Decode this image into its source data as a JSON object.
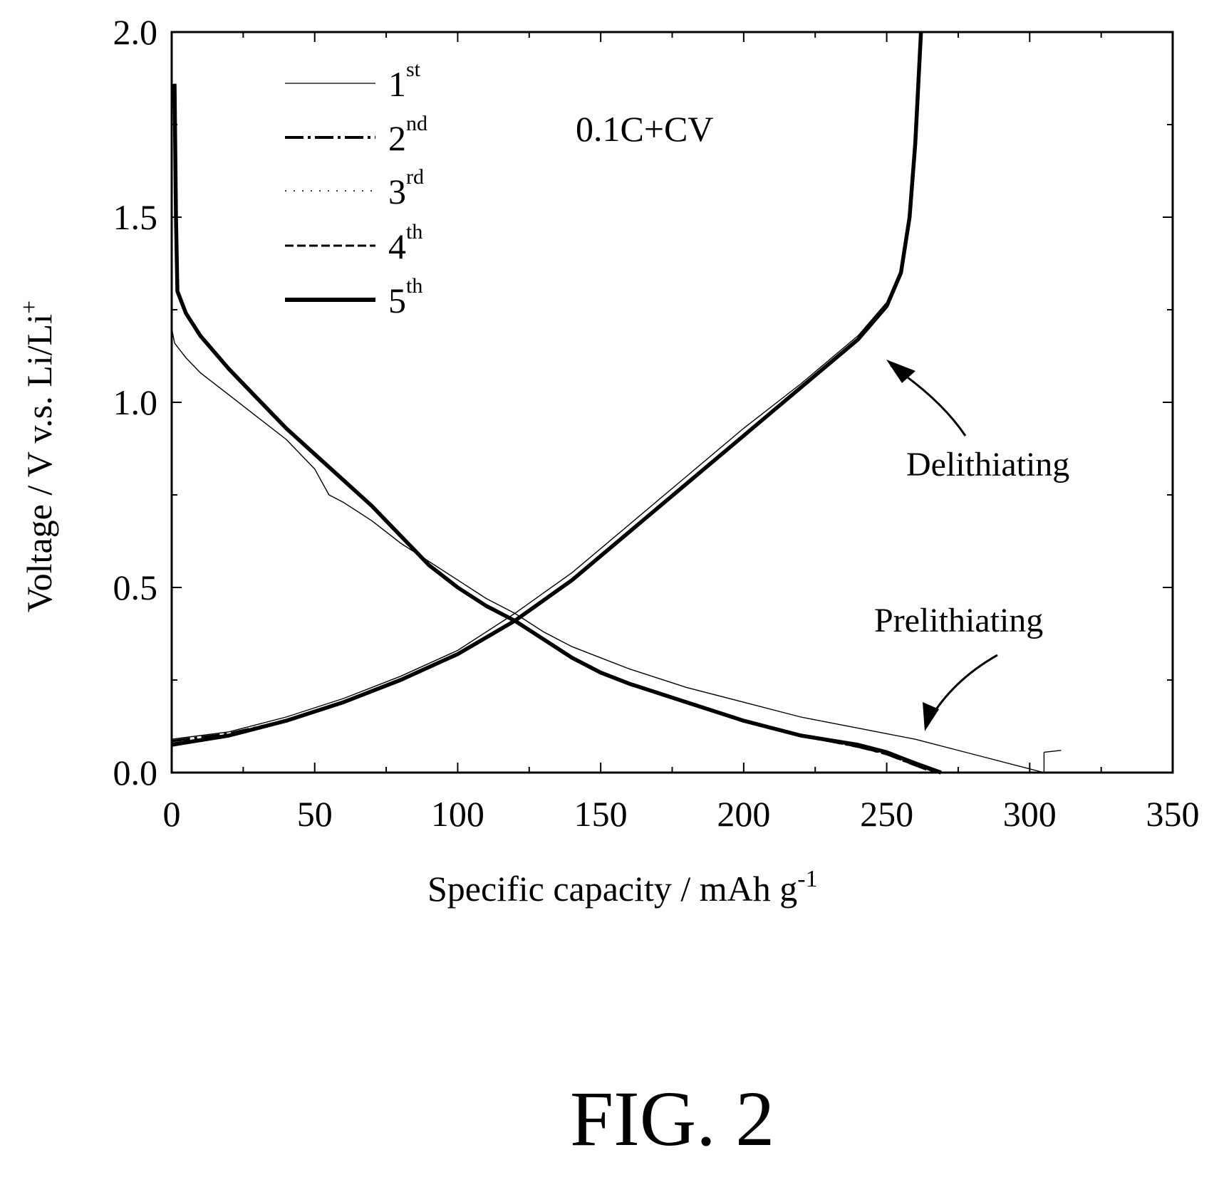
{
  "figure_label": "FIG. 2",
  "chart_data": {
    "type": "line",
    "xlabel": "Specific capacity / mAh g",
    "xlabel_sup": "-1",
    "ylabel": "Voltage / V v.s. Li/Li",
    "ylabel_sup": "+",
    "xlim": [
      0,
      350
    ],
    "ylim": [
      0.0,
      2.0
    ],
    "xticks": [
      0,
      50,
      100,
      150,
      200,
      250,
      300,
      350
    ],
    "xtick_labels": [
      "0",
      "50",
      "100",
      "150",
      "200",
      "250",
      "300",
      "350"
    ],
    "yticks": [
      0.0,
      0.5,
      1.0,
      1.5,
      2.0
    ],
    "ytick_labels": [
      "0.0",
      "0.5",
      "1.0",
      "1.5",
      "2.0"
    ],
    "grid": false,
    "legend_position": "top-left",
    "annotations": {
      "condition": "0.1C+CV",
      "delithiating": "Delithiating",
      "prelithiating": "Prelithiating"
    },
    "series": [
      {
        "name": "1",
        "name_sup": "st",
        "style": "thin",
        "prelithiating": [
          [
            0,
            1.2
          ],
          [
            1,
            1.16
          ],
          [
            5,
            1.12
          ],
          [
            10,
            1.08
          ],
          [
            20,
            1.02
          ],
          [
            30,
            0.96
          ],
          [
            40,
            0.9
          ],
          [
            50,
            0.82
          ],
          [
            55,
            0.75
          ],
          [
            60,
            0.73
          ],
          [
            70,
            0.68
          ],
          [
            80,
            0.62
          ],
          [
            90,
            0.57
          ],
          [
            100,
            0.52
          ],
          [
            110,
            0.47
          ],
          [
            120,
            0.43
          ],
          [
            130,
            0.38
          ],
          [
            140,
            0.34
          ],
          [
            150,
            0.31
          ],
          [
            160,
            0.28
          ],
          [
            180,
            0.23
          ],
          [
            200,
            0.19
          ],
          [
            220,
            0.15
          ],
          [
            240,
            0.12
          ],
          [
            260,
            0.09
          ],
          [
            280,
            0.05
          ],
          [
            300,
            0.01
          ],
          [
            305,
            0.0
          ]
        ],
        "tail": [
          [
            305,
            0.0
          ],
          [
            305,
            0.055
          ],
          [
            311,
            0.06
          ]
        ],
        "delithiating": [
          [
            0,
            0.09
          ],
          [
            20,
            0.11
          ],
          [
            40,
            0.15
          ],
          [
            60,
            0.2
          ],
          [
            80,
            0.26
          ],
          [
            100,
            0.33
          ],
          [
            120,
            0.43
          ],
          [
            140,
            0.54
          ],
          [
            160,
            0.67
          ],
          [
            180,
            0.8
          ],
          [
            200,
            0.93
          ],
          [
            220,
            1.05
          ],
          [
            240,
            1.18
          ],
          [
            250,
            1.27
          ],
          [
            255,
            1.36
          ],
          [
            258,
            1.5
          ],
          [
            260,
            1.7
          ],
          [
            261,
            1.85
          ],
          [
            262,
            2.0
          ]
        ]
      },
      {
        "name": "2",
        "name_sup": "nd",
        "style": "dashdot",
        "prelithiating": [
          [
            1,
            1.86
          ],
          [
            1.5,
            1.5
          ],
          [
            2,
            1.3
          ],
          [
            5,
            1.24
          ],
          [
            10,
            1.18
          ],
          [
            20,
            1.09
          ],
          [
            30,
            1.01
          ],
          [
            40,
            0.93
          ],
          [
            50,
            0.86
          ],
          [
            60,
            0.79
          ],
          [
            70,
            0.72
          ],
          [
            80,
            0.64
          ],
          [
            90,
            0.56
          ],
          [
            100,
            0.5
          ],
          [
            110,
            0.45
          ],
          [
            120,
            0.41
          ],
          [
            130,
            0.36
          ],
          [
            140,
            0.31
          ],
          [
            150,
            0.27
          ],
          [
            160,
            0.24
          ],
          [
            180,
            0.19
          ],
          [
            200,
            0.14
          ],
          [
            220,
            0.1
          ],
          [
            240,
            0.07
          ],
          [
            250,
            0.05
          ],
          [
            260,
            0.02
          ],
          [
            267,
            0.0
          ]
        ],
        "delithiating": [
          [
            0,
            0.085
          ],
          [
            20,
            0.105
          ],
          [
            40,
            0.14
          ],
          [
            60,
            0.19
          ],
          [
            80,
            0.25
          ],
          [
            100,
            0.32
          ],
          [
            120,
            0.41
          ],
          [
            140,
            0.52
          ],
          [
            160,
            0.65
          ],
          [
            180,
            0.78
          ],
          [
            200,
            0.91
          ],
          [
            220,
            1.04
          ],
          [
            240,
            1.17
          ],
          [
            250,
            1.26
          ],
          [
            255,
            1.35
          ],
          [
            258,
            1.5
          ],
          [
            260,
            1.7
          ],
          [
            261,
            1.85
          ],
          [
            262,
            2.0
          ]
        ]
      },
      {
        "name": "3",
        "name_sup": "rd",
        "style": "dotted",
        "prelithiating": [
          [
            1,
            1.86
          ],
          [
            1.5,
            1.5
          ],
          [
            2,
            1.3
          ],
          [
            5,
            1.24
          ],
          [
            10,
            1.18
          ],
          [
            20,
            1.09
          ],
          [
            30,
            1.01
          ],
          [
            40,
            0.93
          ],
          [
            50,
            0.86
          ],
          [
            60,
            0.79
          ],
          [
            70,
            0.72
          ],
          [
            80,
            0.64
          ],
          [
            90,
            0.56
          ],
          [
            100,
            0.5
          ],
          [
            110,
            0.45
          ],
          [
            120,
            0.41
          ],
          [
            130,
            0.36
          ],
          [
            140,
            0.31
          ],
          [
            150,
            0.27
          ],
          [
            160,
            0.24
          ],
          [
            180,
            0.19
          ],
          [
            200,
            0.14
          ],
          [
            220,
            0.1
          ],
          [
            240,
            0.07
          ],
          [
            250,
            0.05
          ],
          [
            260,
            0.02
          ],
          [
            268,
            0.0
          ]
        ],
        "delithiating": [
          [
            0,
            0.08
          ],
          [
            20,
            0.1
          ],
          [
            40,
            0.14
          ],
          [
            60,
            0.19
          ],
          [
            80,
            0.25
          ],
          [
            100,
            0.32
          ],
          [
            120,
            0.41
          ],
          [
            140,
            0.52
          ],
          [
            160,
            0.65
          ],
          [
            180,
            0.78
          ],
          [
            200,
            0.91
          ],
          [
            220,
            1.04
          ],
          [
            240,
            1.17
          ],
          [
            250,
            1.26
          ],
          [
            255,
            1.35
          ],
          [
            258,
            1.5
          ],
          [
            260,
            1.7
          ],
          [
            261,
            1.85
          ],
          [
            262,
            2.0
          ]
        ]
      },
      {
        "name": "4",
        "name_sup": "th",
        "style": "dashed",
        "prelithiating": [
          [
            1,
            1.86
          ],
          [
            1.5,
            1.5
          ],
          [
            2,
            1.3
          ],
          [
            5,
            1.24
          ],
          [
            10,
            1.18
          ],
          [
            20,
            1.09
          ],
          [
            30,
            1.01
          ],
          [
            40,
            0.93
          ],
          [
            50,
            0.86
          ],
          [
            60,
            0.79
          ],
          [
            70,
            0.72
          ],
          [
            80,
            0.64
          ],
          [
            90,
            0.56
          ],
          [
            100,
            0.5
          ],
          [
            110,
            0.45
          ],
          [
            120,
            0.41
          ],
          [
            130,
            0.36
          ],
          [
            140,
            0.31
          ],
          [
            150,
            0.27
          ],
          [
            160,
            0.24
          ],
          [
            180,
            0.19
          ],
          [
            200,
            0.14
          ],
          [
            220,
            0.1
          ],
          [
            240,
            0.07
          ],
          [
            250,
            0.05
          ],
          [
            260,
            0.02
          ],
          [
            268,
            0.0
          ]
        ],
        "delithiating": [
          [
            0,
            0.078
          ],
          [
            20,
            0.1
          ],
          [
            40,
            0.14
          ],
          [
            60,
            0.19
          ],
          [
            80,
            0.25
          ],
          [
            100,
            0.32
          ],
          [
            120,
            0.41
          ],
          [
            140,
            0.52
          ],
          [
            160,
            0.65
          ],
          [
            180,
            0.78
          ],
          [
            200,
            0.91
          ],
          [
            220,
            1.04
          ],
          [
            240,
            1.17
          ],
          [
            250,
            1.26
          ],
          [
            255,
            1.35
          ],
          [
            258,
            1.5
          ],
          [
            260,
            1.7
          ],
          [
            261,
            1.85
          ],
          [
            262,
            2.0
          ]
        ]
      },
      {
        "name": "5",
        "name_sup": "th",
        "style": "thick",
        "prelithiating": [
          [
            1,
            1.86
          ],
          [
            1.5,
            1.5
          ],
          [
            2,
            1.3
          ],
          [
            5,
            1.24
          ],
          [
            10,
            1.18
          ],
          [
            20,
            1.09
          ],
          [
            30,
            1.01
          ],
          [
            40,
            0.93
          ],
          [
            50,
            0.86
          ],
          [
            60,
            0.79
          ],
          [
            70,
            0.72
          ],
          [
            80,
            0.64
          ],
          [
            90,
            0.56
          ],
          [
            100,
            0.5
          ],
          [
            110,
            0.45
          ],
          [
            120,
            0.41
          ],
          [
            130,
            0.36
          ],
          [
            140,
            0.31
          ],
          [
            150,
            0.27
          ],
          [
            160,
            0.24
          ],
          [
            180,
            0.19
          ],
          [
            200,
            0.14
          ],
          [
            220,
            0.1
          ],
          [
            240,
            0.075
          ],
          [
            250,
            0.055
          ],
          [
            260,
            0.025
          ],
          [
            269,
            0.0
          ]
        ],
        "delithiating": [
          [
            0,
            0.075
          ],
          [
            20,
            0.1
          ],
          [
            40,
            0.14
          ],
          [
            60,
            0.19
          ],
          [
            80,
            0.25
          ],
          [
            100,
            0.32
          ],
          [
            120,
            0.41
          ],
          [
            140,
            0.52
          ],
          [
            160,
            0.65
          ],
          [
            180,
            0.78
          ],
          [
            200,
            0.91
          ],
          [
            220,
            1.04
          ],
          [
            240,
            1.17
          ],
          [
            250,
            1.26
          ],
          [
            255,
            1.35
          ],
          [
            258,
            1.5
          ],
          [
            260,
            1.7
          ],
          [
            261,
            1.85
          ],
          [
            262,
            2.0
          ]
        ]
      }
    ]
  }
}
